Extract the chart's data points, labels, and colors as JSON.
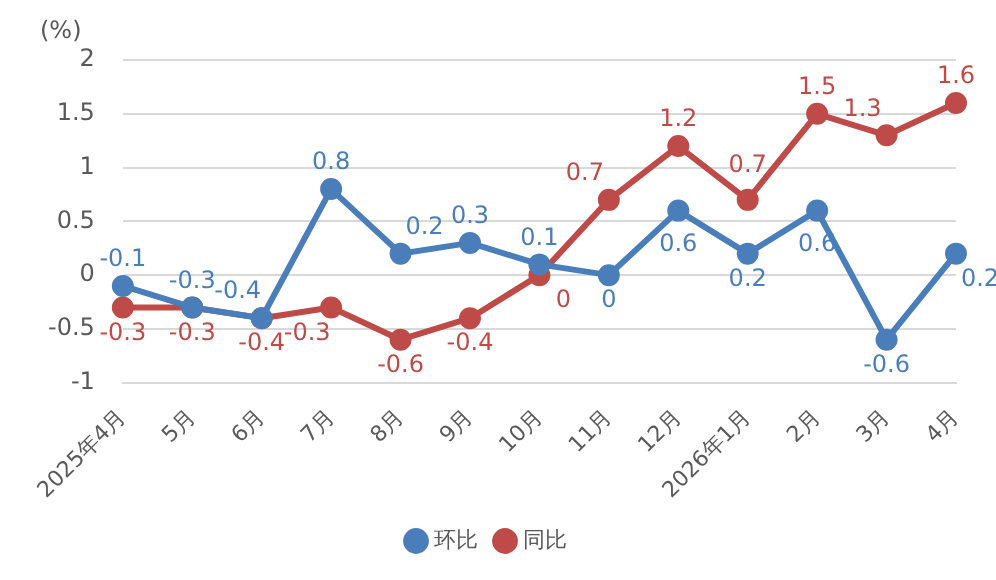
{
  "chart_data": {
    "type": "line",
    "ylabel": "(%)",
    "categories": [
      "2025年4月",
      "5月",
      "6月",
      "7月",
      "8月",
      "9月",
      "10月",
      "11月",
      "12月",
      "2026年1月",
      "2月",
      "3月",
      "4月"
    ],
    "series": [
      {
        "name": "环比",
        "color": "#4a7ebb",
        "values": [
          -0.1,
          -0.3,
          -0.4,
          0.8,
          0.2,
          0.3,
          0.1,
          0,
          0.6,
          0.2,
          0.6,
          -0.6,
          0.2
        ]
      },
      {
        "name": "同比",
        "color": "#be4b48",
        "values": [
          -0.3,
          -0.3,
          -0.4,
          -0.3,
          -0.6,
          -0.4,
          0,
          0.7,
          1.2,
          0.7,
          1.5,
          1.3,
          1.6
        ]
      }
    ],
    "ylim": [
      -1,
      2
    ],
    "yticks": [
      -1,
      -0.5,
      0,
      0.5,
      1,
      1.5,
      2
    ],
    "grid": "y",
    "legend": "bottom",
    "marker": "circle",
    "line_style": "solid",
    "data_labels": true
  }
}
